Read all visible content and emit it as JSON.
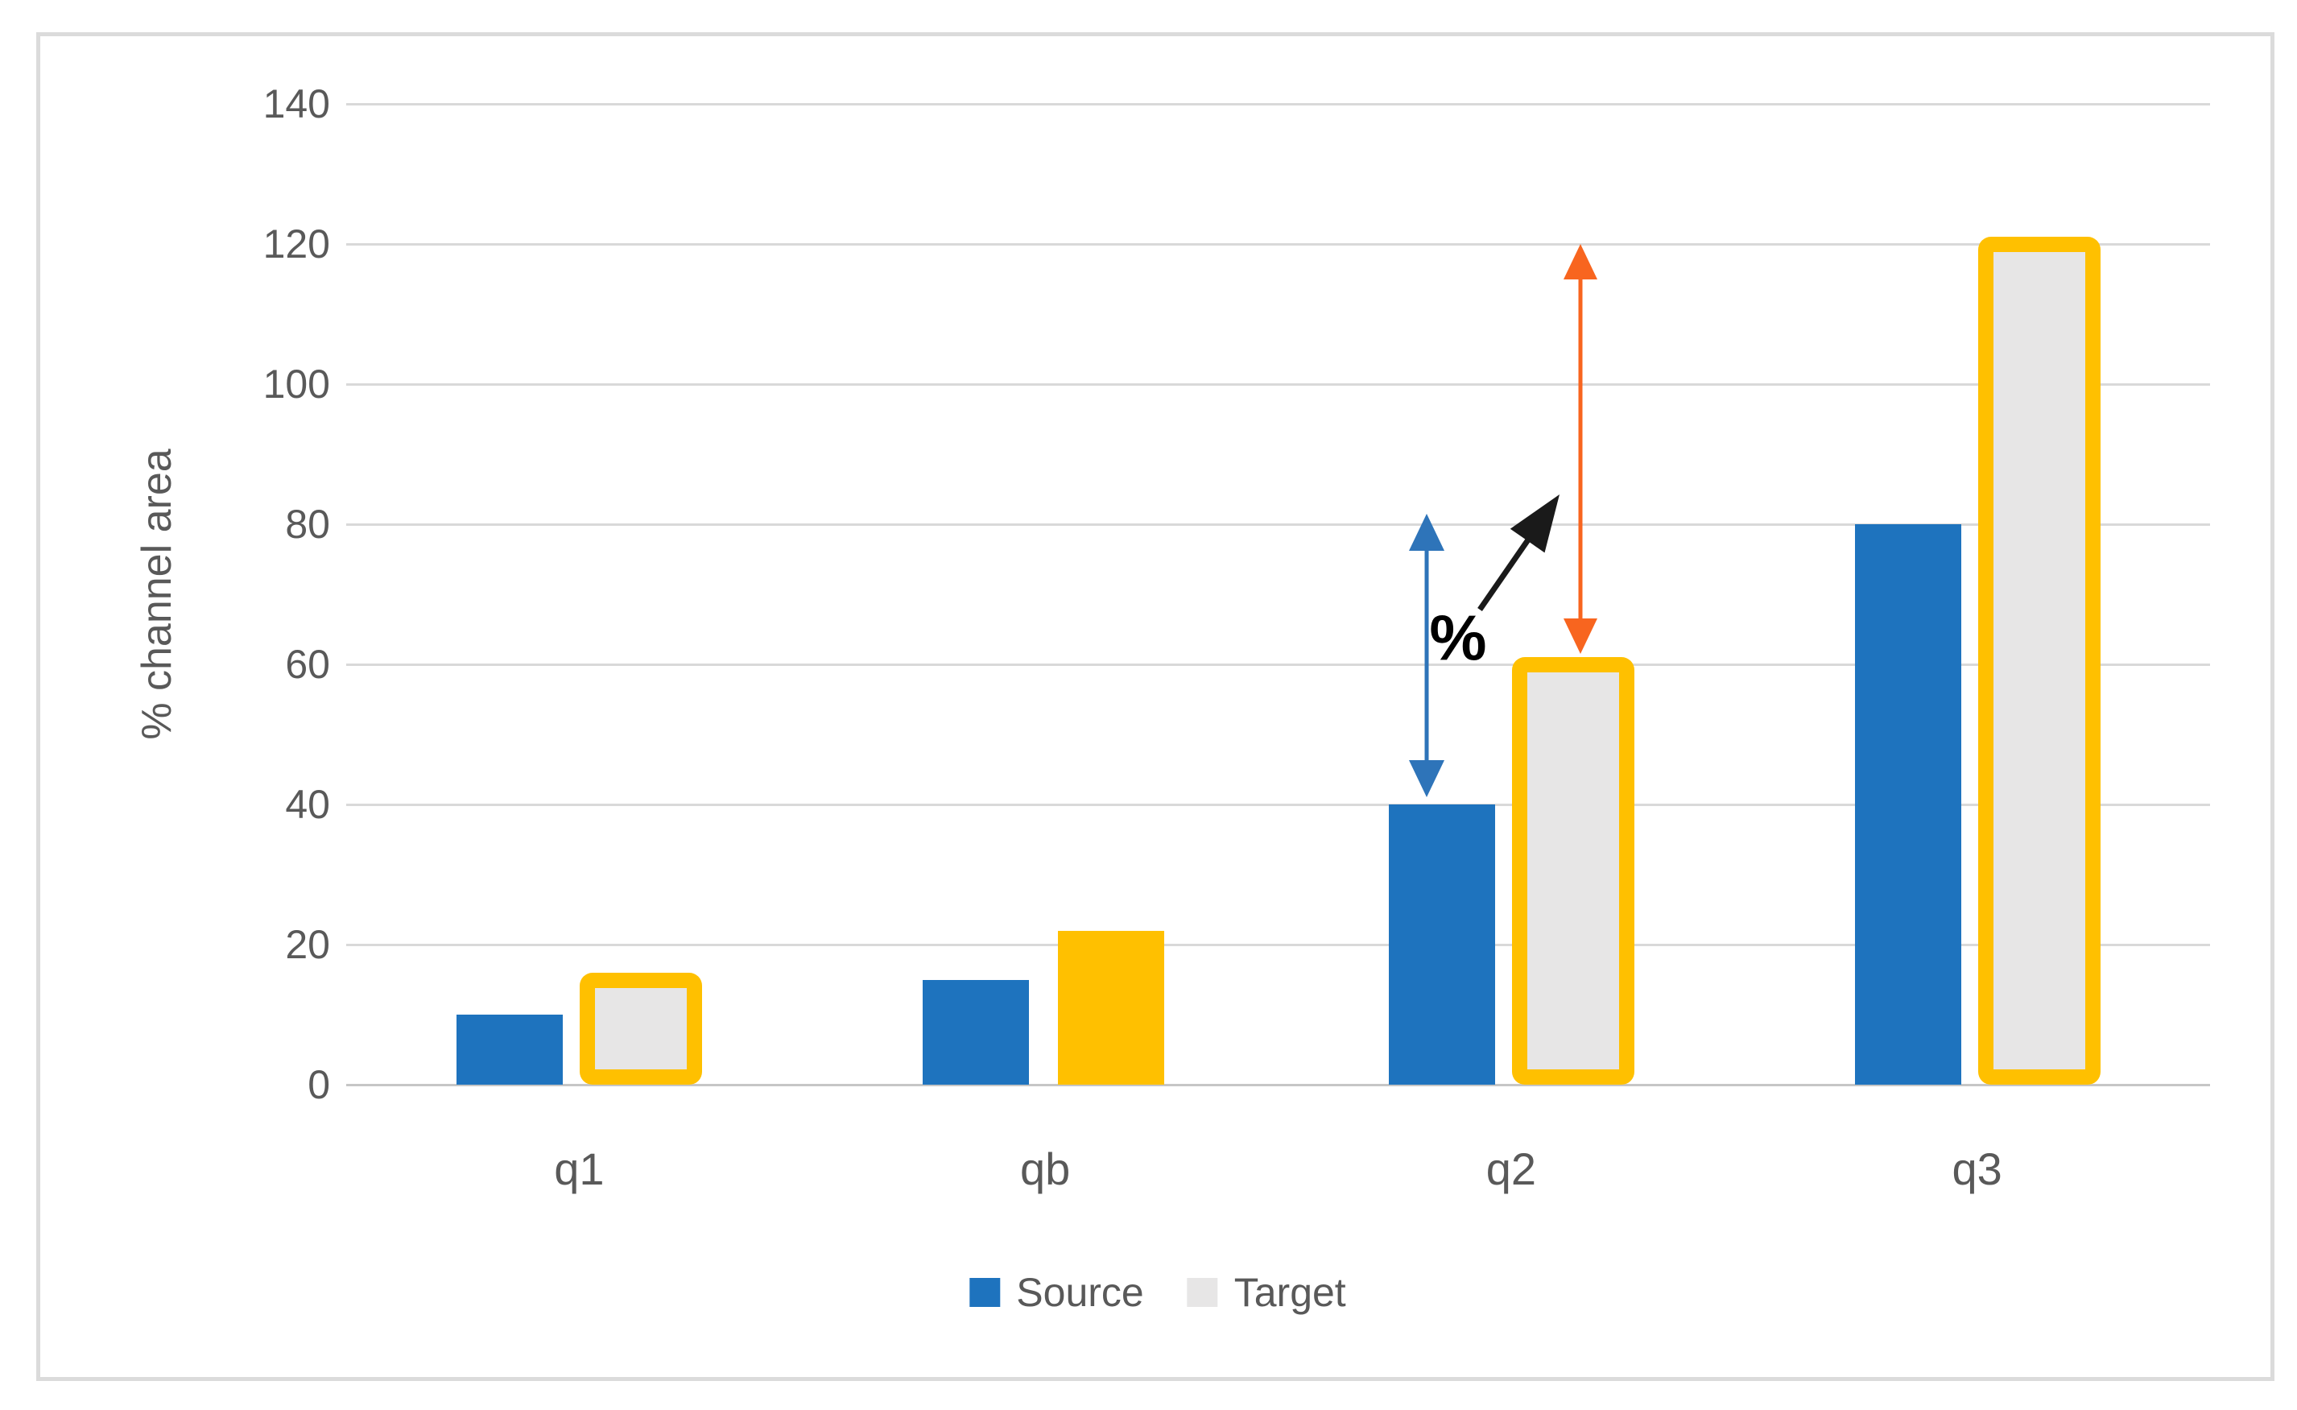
{
  "figure": {
    "kind": "clustered-column-chart",
    "y_axis_title": "% channel area",
    "legend": [
      "Source",
      "Target"
    ]
  },
  "chart_data": {
    "type": "bar",
    "title": "",
    "categories": [
      "q1",
      "qb",
      "q2",
      "q3"
    ],
    "series": [
      {
        "name": "Source",
        "color": "#1E73BE",
        "values": [
          10,
          15,
          40,
          80
        ]
      },
      {
        "name": "Target",
        "color": "#E7E6E6",
        "values": [
          16,
          22,
          61,
          121
        ],
        "point_styles": [
          {
            "fill": "#E7E6E6",
            "outline": "#FFC000"
          },
          {
            "fill": "#FFC000",
            "outline": null
          },
          {
            "fill": "#E7E6E6",
            "outline": "#FFC000"
          },
          {
            "fill": "#E7E6E6",
            "outline": "#FFC000"
          }
        ]
      }
    ],
    "xlabel": "",
    "ylabel": "% channel area",
    "yticks": [
      0,
      20,
      40,
      60,
      80,
      100,
      120,
      140
    ],
    "ylim": [
      0,
      140
    ],
    "grid": true,
    "legend_position": "bottom",
    "annotations": [
      {
        "kind": "double-arrow",
        "name": "blue-range-arrow",
        "color": "#2E74B9",
        "x": 1772,
        "y_top": 638,
        "y_bottom": 990,
        "shaft": 5,
        "head_len": 46,
        "head_half": 22,
        "at_category": "q2",
        "from_value": 82,
        "to_value": 41
      },
      {
        "kind": "double-arrow",
        "name": "orange-range-arrow",
        "color": "#F8651F",
        "x": 1963,
        "y_top": 303,
        "y_bottom": 812,
        "shaft": 5,
        "head_len": 44,
        "head_half": 21,
        "at_category": "q2",
        "from_value": 120,
        "to_value": 62
      },
      {
        "kind": "arrow",
        "name": "black-increase-arrow",
        "color": "#1A1A1A",
        "x1": 1838,
        "y1": 757,
        "x2": 1937,
        "y2": 614,
        "shaft": 7,
        "head_len": 70,
        "head_half": 26
      },
      {
        "kind": "text",
        "name": "percent-label",
        "text": "%",
        "color": "#000000",
        "x": 1811,
        "y": 792,
        "font_size": 80
      }
    ],
    "colors": {
      "gridline": "#D9D9D9",
      "axis_line": "#C6C6C6",
      "text": "#595959",
      "frame_border": "#DBDBDB",
      "background": "#FFFFFF",
      "legend_source_swatch": "#1E73BE",
      "legend_target_swatch": "#E7E6E6"
    }
  }
}
